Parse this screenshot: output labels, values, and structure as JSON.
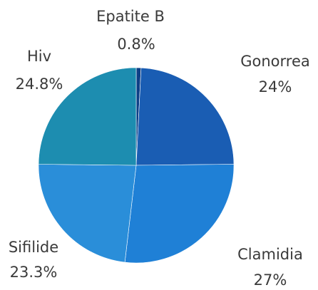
{
  "chart_data": {
    "type": "pie",
    "categories": [
      "Epatite B",
      "Gonorrea",
      "Clamidia",
      "Sifilide",
      "Hiv"
    ],
    "values": [
      0.8,
      24,
      27,
      23.3,
      24.8
    ],
    "value_labels": [
      "0.8%",
      "24%",
      "27%",
      "23.3%",
      "24.8%"
    ],
    "colors": [
      "#0d3f86",
      "#1a5db3",
      "#1f80d6",
      "#2a8ed9",
      "#1d8db0"
    ]
  }
}
